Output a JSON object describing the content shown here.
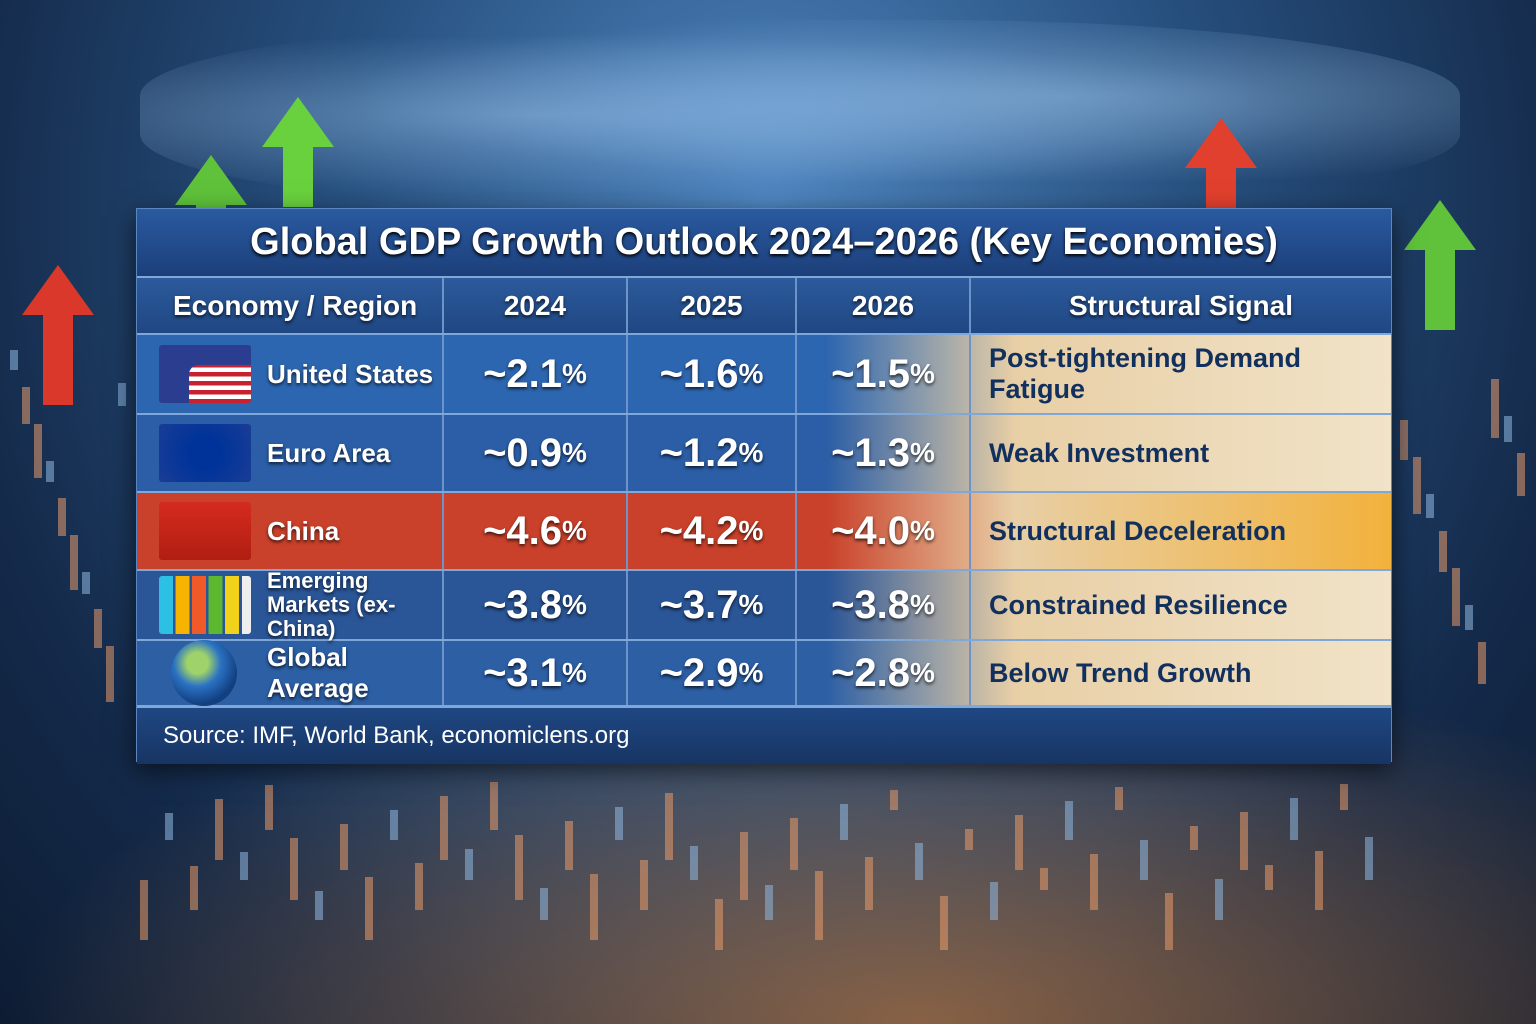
{
  "chart_data": {
    "type": "table",
    "title": "Global GDP Growth Outlook 2024–2026 (Key Economies)",
    "columns": [
      "Economy / Region",
      "2024",
      "2025",
      "2026",
      "Structural Signal"
    ],
    "rows": [
      {
        "name": "United States",
        "icon": "us-flag-icon",
        "values": [
          "~2.1",
          "~1.6",
          "~1.5"
        ],
        "signal": "Post-tightening Demand Fatigue",
        "color": "#2d66b0"
      },
      {
        "name": "Euro Area",
        "icon": "eu-flag-icon",
        "values": [
          "~0.9",
          "~1.2",
          "~1.3"
        ],
        "signal": "Weak Investment",
        "color": "#2b5ea6"
      },
      {
        "name": "China",
        "icon": "china-flag-icon",
        "values": [
          "~4.6",
          "~4.2",
          "~4.0"
        ],
        "signal": "Structural Deceleration",
        "color": "#c9412a"
      },
      {
        "name": "Emerging Markets (ex-China)",
        "icon": "bar-chart-icon",
        "values": [
          "~3.8",
          "~3.7",
          "~3.8"
        ],
        "signal": "Constrained Resilience",
        "color": "#2a5597"
      },
      {
        "name": "Global Average",
        "icon": "globe-icon",
        "values": [
          "~3.1",
          "~2.9",
          "~2.8"
        ],
        "signal": "Below Trend Growth",
        "color": "#2d5fa5"
      }
    ],
    "unit": "%"
  },
  "source": "Source: IMF, World Bank, economiclens.org"
}
